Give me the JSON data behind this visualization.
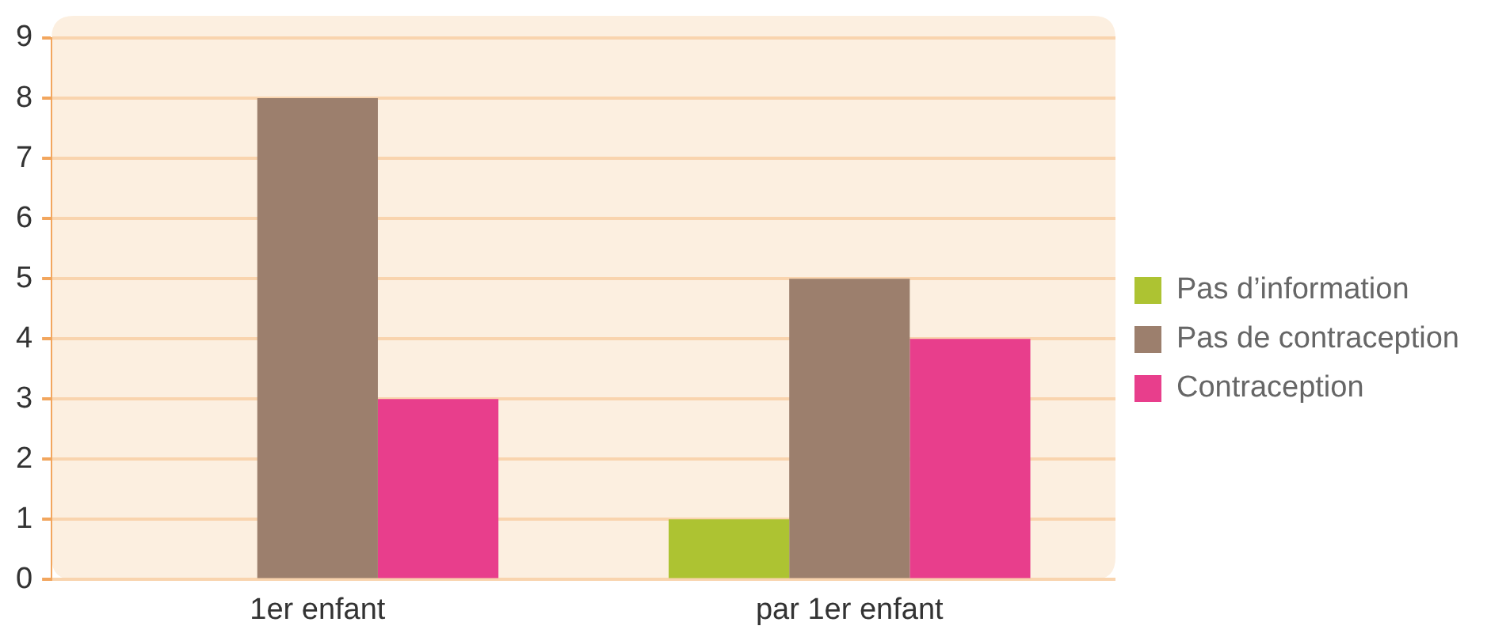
{
  "chart_data": {
    "type": "bar",
    "categories": [
      "1er enfant",
      "par 1er enfant"
    ],
    "series": [
      {
        "name": "Pas d’information",
        "color": "#adc332",
        "values": [
          0,
          1
        ]
      },
      {
        "name": "Pas de contraception",
        "color": "#9c7f6d",
        "values": [
          8,
          5
        ]
      },
      {
        "name": "Contraception",
        "color": "#e83e8c",
        "values": [
          3,
          4
        ]
      }
    ],
    "ylim": [
      0,
      9
    ],
    "yticks": [
      0,
      1,
      2,
      3,
      4,
      5,
      6,
      7,
      8,
      9
    ],
    "grid": "y",
    "legend": "right"
  }
}
